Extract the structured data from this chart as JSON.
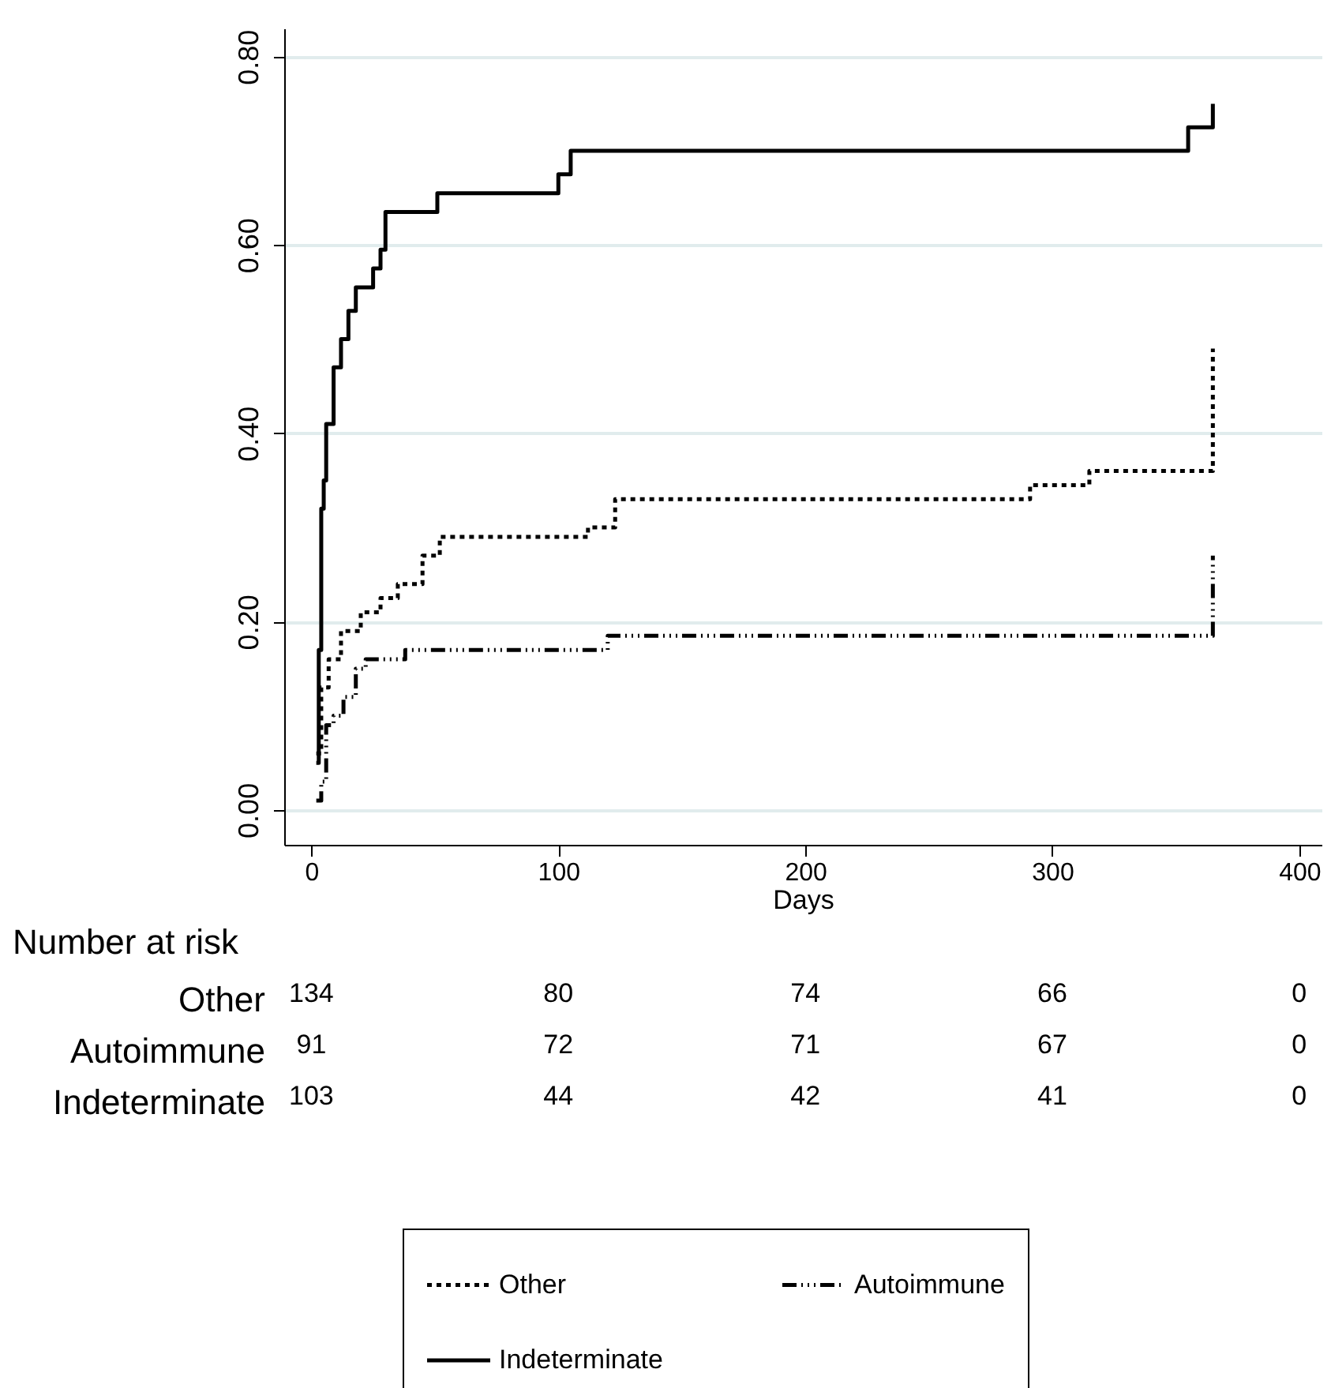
{
  "chart_data": {
    "type": "step",
    "xlabel": "Days",
    "xlim": [
      -11,
      409
    ],
    "ylim": [
      -0.037,
      0.83
    ],
    "xticks": [
      0,
      100,
      200,
      300,
      400
    ],
    "yticks": [
      {
        "value": 0,
        "label": "0.00"
      },
      {
        "value": 0.2,
        "label": "0.20"
      },
      {
        "value": 0.4,
        "label": "0.40"
      },
      {
        "value": 0.6,
        "label": "0.60"
      },
      {
        "value": 0.8,
        "label": "0.80"
      }
    ],
    "grid": "y",
    "legend": "bottom",
    "series": [
      {
        "name": "Other",
        "color": "#000000",
        "line_style": "dotted",
        "x": [
          2,
          4,
          7,
          12,
          20,
          28,
          35,
          45,
          52,
          112,
          123,
          291,
          315,
          365,
          365
        ],
        "values": [
          0.06,
          0.13,
          0.16,
          0.19,
          0.21,
          0.225,
          0.24,
          0.27,
          0.29,
          0.3,
          0.33,
          0.345,
          0.36,
          0.36,
          0.49
        ]
      },
      {
        "name": "Autoimmune",
        "color": "#000000",
        "line_style": "dashed",
        "x": [
          2,
          4,
          6,
          9,
          13,
          18,
          22,
          38,
          120,
          365,
          365
        ],
        "values": [
          0.01,
          0.03,
          0.09,
          0.1,
          0.12,
          0.15,
          0.16,
          0.17,
          0.185,
          0.185,
          0.27
        ]
      },
      {
        "name": "Indeterminate",
        "color": "#000000",
        "line_style": "solid",
        "x": [
          2,
          3,
          4,
          5,
          6,
          9,
          12,
          15,
          18,
          25,
          28,
          30,
          51,
          100,
          105,
          355,
          365
        ],
        "values": [
          0.05,
          0.17,
          0.32,
          0.35,
          0.41,
          0.47,
          0.5,
          0.53,
          0.555,
          0.575,
          0.595,
          0.635,
          0.655,
          0.675,
          0.7,
          0.725,
          0.75
        ]
      }
    ],
    "annotations": [
      "Number at risk",
      "Other",
      "134",
      "80",
      "74",
      "66",
      "0",
      "Autoimmune",
      "91",
      "72",
      "71",
      "67",
      "0",
      "Indeterminate",
      "103",
      "44",
      "42",
      "41",
      "0"
    ]
  }
}
